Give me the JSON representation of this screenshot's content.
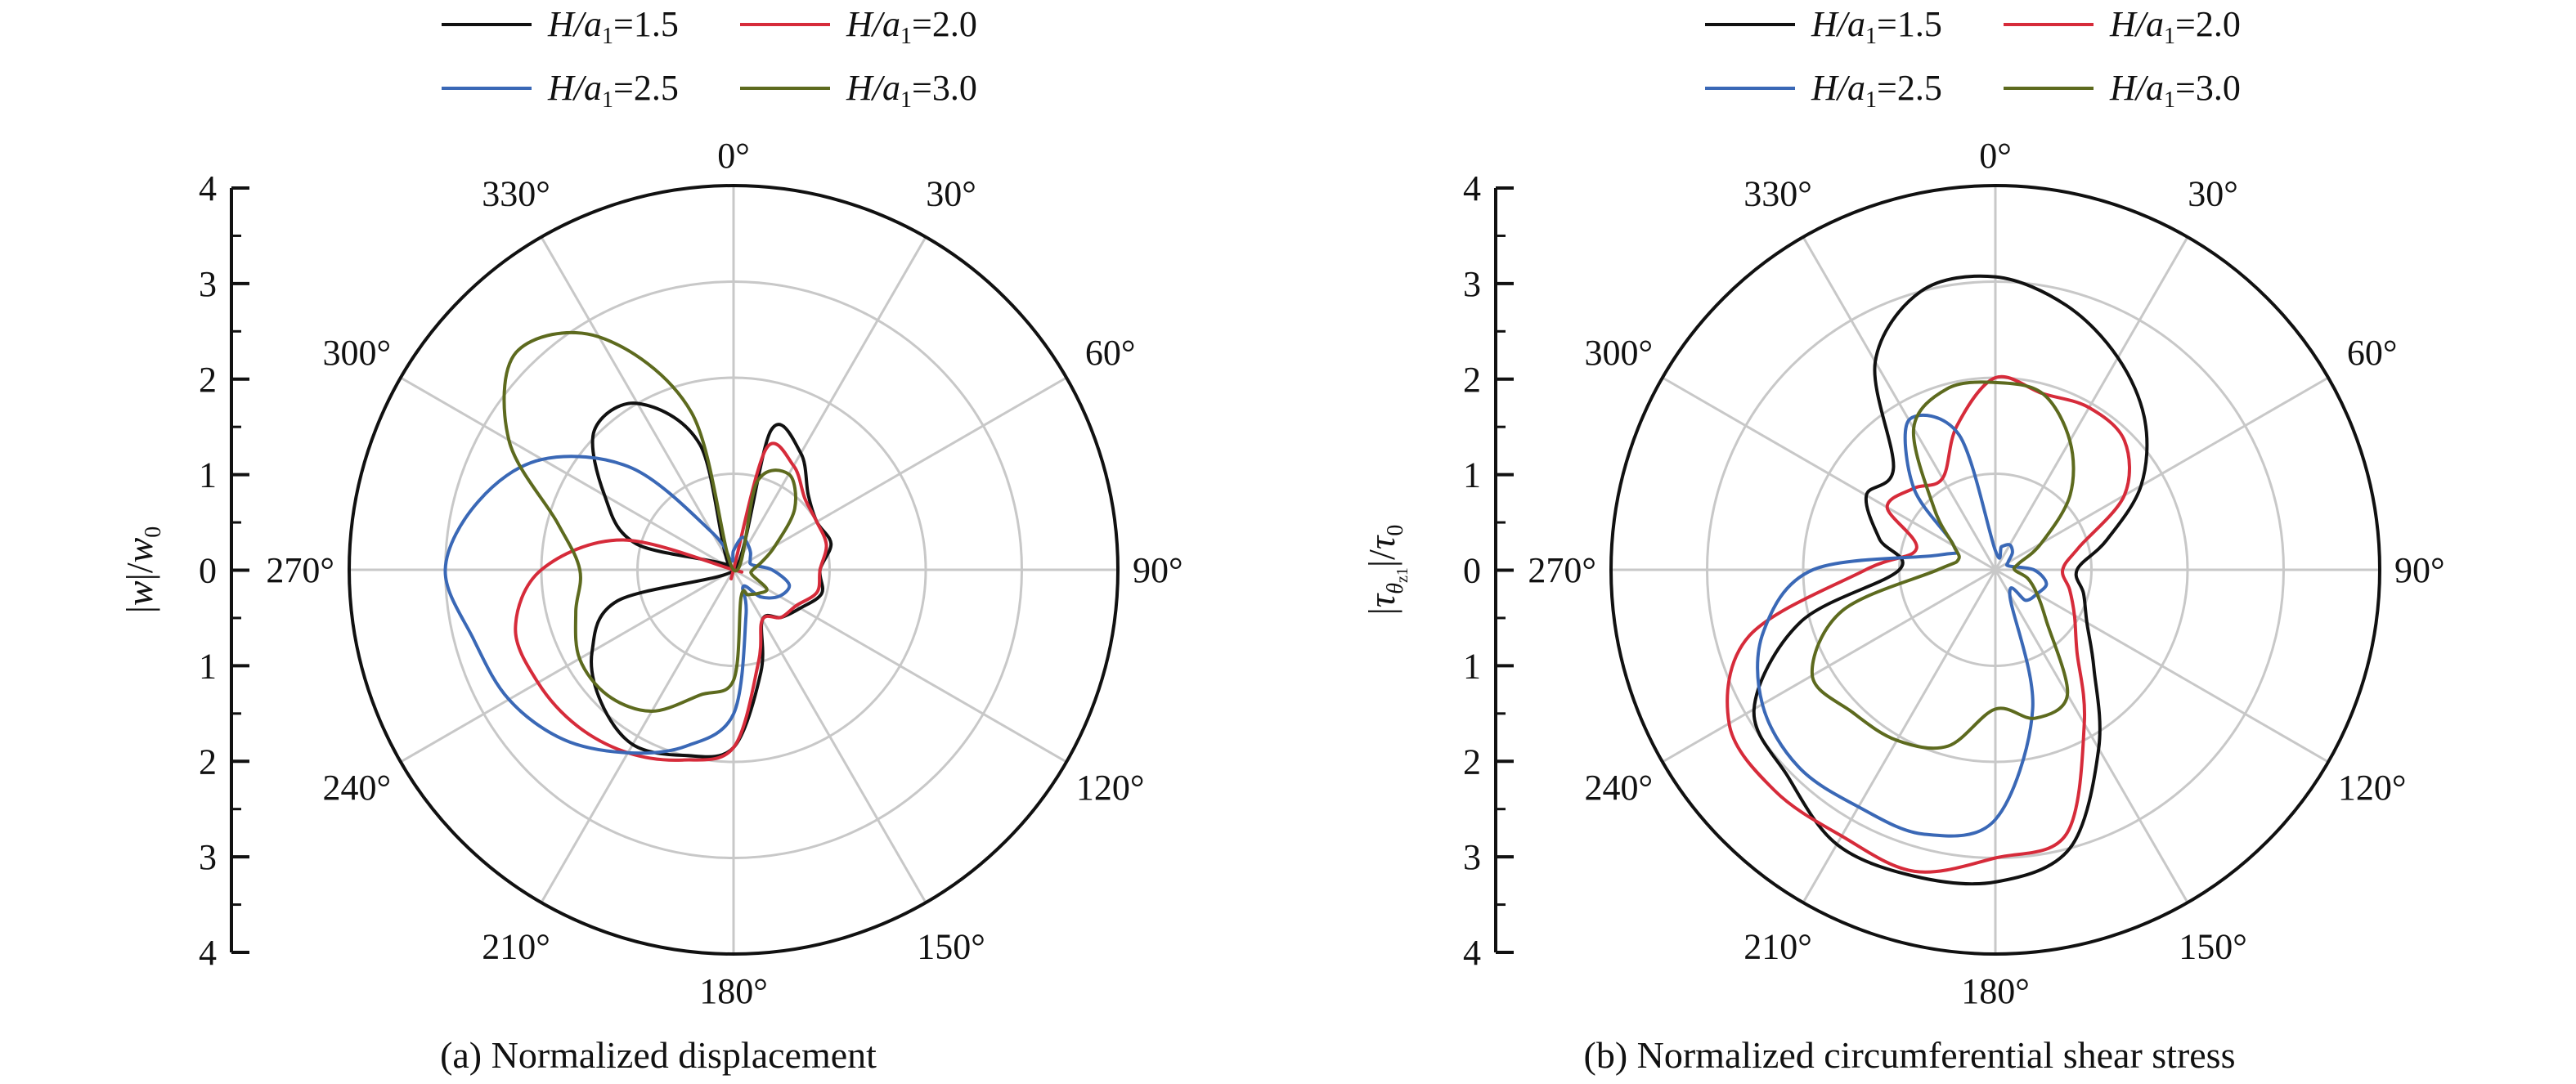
{
  "chart_data": [
    {
      "type": "polar-line",
      "caption": "(a) Normalized displacement",
      "ylabel": "|w|/w0",
      "ylabel_parts": {
        "p1": "|",
        "v1": "w",
        "p2": "|/",
        "v2": "w",
        "sub": "0"
      },
      "rlim": [
        0,
        4
      ],
      "r_ticks": [
        "4",
        "3",
        "2",
        "1",
        "0",
        "1",
        "2",
        "3",
        "4"
      ],
      "theta_ticks": [
        "0°",
        "30°",
        "60°",
        "90°",
        "120°",
        "150°",
        "180°",
        "210°",
        "240°",
        "270°",
        "300°",
        "330°"
      ],
      "theta_direction": "clockwise",
      "theta_zero": "top",
      "grid": true,
      "legend": {
        "position": "top",
        "entries": [
          {
            "prefix": "H/a",
            "sub": "1",
            "suffix": "=1.5"
          },
          {
            "prefix": "H/a",
            "sub": "1",
            "suffix": "=2.0"
          },
          {
            "prefix": "H/a",
            "sub": "1",
            "suffix": "=2.5"
          },
          {
            "prefix": "H/a",
            "sub": "1",
            "suffix": "=3.0"
          }
        ]
      },
      "series": [
        {
          "name": "H/a1=1.5",
          "color": "#111111",
          "theta": [
            0,
            15,
            30,
            45,
            60,
            75,
            90,
            105,
            120,
            135,
            150,
            165,
            180,
            195,
            210,
            225,
            240,
            255,
            270,
            285,
            300,
            315,
            330,
            345,
            360
          ],
          "r": [
            0,
            1.5,
            1.4,
            1.1,
            1.0,
            1.05,
            0.9,
            0.95,
            0.8,
            0.7,
            0.6,
            1.1,
            1.85,
            2.0,
            2.1,
            1.95,
            1.7,
            1.25,
            0,
            1.05,
            1.55,
            2.05,
            2.0,
            1.35,
            0
          ]
        },
        {
          "name": "H/a1=2.0",
          "color": "#d62b3a",
          "theta": [
            0,
            15,
            30,
            45,
            60,
            75,
            90,
            105,
            120,
            135,
            150,
            165,
            180,
            195,
            210,
            225,
            240,
            255,
            270,
            285,
            300,
            315,
            330,
            345,
            360
          ],
          "r": [
            0,
            1.3,
            1.25,
            1.05,
            1.0,
            1.0,
            0.9,
            0.9,
            0.75,
            0.7,
            0.6,
            1.0,
            1.85,
            2.05,
            2.2,
            2.3,
            2.35,
            2.35,
            2.0,
            1.2,
            0,
            0,
            0,
            0,
            0
          ]
        },
        {
          "name": "H/a1=2.5",
          "color": "#3a68b6",
          "theta": [
            0,
            15,
            30,
            45,
            60,
            75,
            90,
            105,
            120,
            135,
            150,
            165,
            180,
            195,
            210,
            225,
            240,
            255,
            270,
            285,
            300,
            315,
            330,
            345,
            360
          ],
          "r": [
            0.2,
            0.35,
            0.3,
            0.25,
            0.2,
            0.2,
            0.4,
            0.6,
            0.55,
            0.4,
            0.2,
            0.5,
            1.5,
            1.9,
            2.2,
            2.5,
            2.7,
            2.8,
            3.0,
            2.75,
            2.3,
            1.5,
            0.45,
            0.1,
            0.2
          ]
        },
        {
          "name": "H/a1=3.0",
          "color": "#5d6a1e",
          "theta": [
            0,
            15,
            30,
            45,
            60,
            75,
            90,
            105,
            120,
            135,
            150,
            165,
            180,
            195,
            210,
            225,
            240,
            255,
            270,
            285,
            300,
            315,
            330,
            345,
            360
          ],
          "r": [
            0,
            0.95,
            1.15,
            0.9,
            0.5,
            0.3,
            0.2,
            0.2,
            0.4,
            0.35,
            0.3,
            0.3,
            1.15,
            1.35,
            1.7,
            1.85,
            1.85,
            1.7,
            1.6,
            1.9,
            2.7,
            3.2,
            2.8,
            1.7,
            0
          ]
        }
      ]
    },
    {
      "type": "polar-line",
      "caption": "(b) Normalized circumferential shear stress",
      "ylabel": "|τθz1|/τ0",
      "ylabel_parts": {
        "p1": "|",
        "v1": "τ",
        "sub1": "θ",
        "subsub": "z1",
        "p2": "|/",
        "v2": "τ",
        "sub": "0"
      },
      "rlim": [
        0,
        4
      ],
      "r_ticks": [
        "4",
        "3",
        "2",
        "1",
        "0",
        "1",
        "2",
        "3",
        "4"
      ],
      "theta_ticks": [
        "0°",
        "30°",
        "60°",
        "90°",
        "120°",
        "150°",
        "180°",
        "210°",
        "240°",
        "270°",
        "300°",
        "330°"
      ],
      "theta_direction": "clockwise",
      "theta_zero": "top",
      "grid": true,
      "legend": {
        "position": "top",
        "entries": [
          {
            "prefix": "H/a",
            "sub": "1",
            "suffix": "=1.5"
          },
          {
            "prefix": "H/a",
            "sub": "1",
            "suffix": "=2.0"
          },
          {
            "prefix": "H/a",
            "sub": "1",
            "suffix": "=2.5"
          },
          {
            "prefix": "H/a",
            "sub": "1",
            "suffix": "=3.0"
          }
        ]
      },
      "series": [
        {
          "name": "H/a1=1.5",
          "color": "#111111",
          "theta": [
            0,
            15,
            30,
            45,
            60,
            75,
            90,
            105,
            120,
            135,
            150,
            165,
            180,
            195,
            210,
            225,
            240,
            255,
            270,
            285,
            300,
            315,
            330,
            345,
            360
          ],
          "r": [
            3.05,
            2.85,
            2.55,
            2.2,
            1.75,
            1.2,
            0.85,
            0.95,
            1.1,
            1.45,
            2.15,
            3.0,
            3.25,
            3.3,
            3.3,
            3.05,
            2.9,
            2.1,
            1.0,
            1.25,
            1.55,
            1.5,
            2.5,
            3.0,
            3.05
          ]
        },
        {
          "name": "H/a1=2.0",
          "color": "#d62b3a",
          "theta": [
            0,
            15,
            30,
            45,
            60,
            75,
            90,
            105,
            120,
            135,
            150,
            165,
            180,
            195,
            210,
            225,
            240,
            255,
            270,
            285,
            300,
            315,
            330,
            345,
            360
          ],
          "r": [
            2.0,
            1.9,
            1.95,
            1.9,
            1.55,
            0.9,
            0.7,
            0.8,
            0.95,
            1.2,
            1.85,
            2.85,
            3.0,
            3.25,
            3.2,
            3.25,
            3.2,
            2.65,
            1.35,
            0.85,
            1.3,
            1.2,
            1.1,
            1.55,
            2.0
          ]
        },
        {
          "name": "H/a1=2.5",
          "color": "#3a68b6",
          "theta": [
            0,
            15,
            30,
            45,
            60,
            75,
            90,
            105,
            120,
            135,
            150,
            165,
            180,
            195,
            210,
            225,
            240,
            255,
            270,
            285,
            300,
            315,
            330,
            345,
            360
          ],
          "r": [
            0.2,
            0.25,
            0.3,
            0.25,
            0.15,
            0.15,
            0.4,
            0.55,
            0.5,
            0.45,
            0.3,
            1.5,
            2.6,
            2.85,
            2.85,
            2.9,
            2.8,
            2.5,
            1.9,
            0.6,
            0.5,
            1.2,
            1.8,
            1.45,
            0.2
          ]
        },
        {
          "name": "H/a1=3.0",
          "color": "#5d6a1e",
          "theta": [
            0,
            15,
            30,
            45,
            60,
            75,
            90,
            105,
            120,
            135,
            150,
            165,
            180,
            195,
            210,
            225,
            240,
            255,
            270,
            285,
            300,
            315,
            330,
            345,
            360
          ],
          "r": [
            1.95,
            1.9,
            1.55,
            1.1,
            0.55,
            0.25,
            0.2,
            0.35,
            0.5,
            0.75,
            1.5,
            1.6,
            1.45,
            1.9,
            2.05,
            2.1,
            2.2,
            1.65,
            0.6,
            0.4,
            0.5,
            0.9,
            1.7,
            1.95,
            1.95
          ]
        }
      ]
    }
  ]
}
